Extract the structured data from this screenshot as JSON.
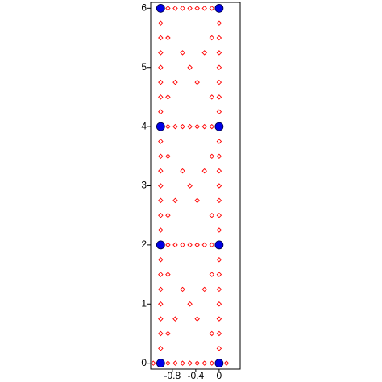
{
  "chart_data": {
    "type": "scatter",
    "xlim": [
      -1.17,
      0.36
    ],
    "ylim": [
      -0.1,
      6.1
    ],
    "xticks": [
      -0.8,
      -0.4,
      0
    ],
    "yticks": [
      0,
      1,
      2,
      3,
      4,
      5,
      6
    ],
    "series": [
      {
        "color": "#ff0000",
        "marker": "diamond",
        "x": [
          -1.125,
          -1,
          -0.875,
          -0.75,
          -0.625,
          -0.5,
          -0.375,
          -0.25,
          -0.125,
          0,
          0.125,
          -1,
          -0.875,
          -0.75,
          -0.625,
          -0.5,
          -0.375,
          -0.25,
          -0.125,
          0,
          -1,
          -0.875,
          -0.75,
          -0.625,
          -0.5,
          -0.375,
          -0.25,
          -0.125,
          0,
          -1,
          -0.875,
          -0.75,
          -0.625,
          -0.5,
          -0.375,
          -0.25,
          -0.125,
          0,
          -1,
          0,
          -1,
          0,
          -1,
          0,
          -1,
          0,
          -1,
          0,
          -1,
          0,
          -1,
          0,
          -0.875,
          -0.125,
          -0.75,
          -0.375,
          -0.5,
          -0.625,
          -0.25,
          -0.875,
          -0.125,
          -1,
          0,
          -1,
          0,
          -1,
          0,
          -1,
          0,
          -1,
          0,
          -1,
          0,
          -1,
          0,
          -0.875,
          -0.125,
          -0.75,
          -0.375,
          -0.5,
          -0.625,
          -0.25,
          -0.875,
          -0.125,
          -1,
          0,
          -1,
          0,
          -1,
          0,
          -1,
          0,
          -1,
          0,
          -1,
          0,
          -1,
          0,
          -0.875,
          -0.125,
          -0.75,
          -0.375,
          -0.5,
          -0.625,
          -0.25,
          -0.875,
          -0.125
        ],
        "values": [
          0,
          0,
          0,
          0,
          0,
          0,
          0,
          0,
          0,
          0,
          0,
          2,
          2,
          2,
          2,
          2,
          2,
          2,
          2,
          2,
          4,
          4,
          4,
          4,
          4,
          4,
          4,
          4,
          4,
          6,
          6,
          6,
          6,
          6,
          6,
          6,
          6,
          6,
          0.25,
          0.25,
          0.5,
          0.5,
          0.75,
          0.75,
          1,
          1,
          1.25,
          1.25,
          1.5,
          1.5,
          1.75,
          1.75,
          0.5,
          0.5,
          0.75,
          0.75,
          1,
          1.25,
          1.25,
          1.5,
          1.5,
          2.25,
          2.25,
          2.5,
          2.5,
          2.75,
          2.75,
          3,
          3,
          3.25,
          3.25,
          3.5,
          3.5,
          3.75,
          3.75,
          2.5,
          2.5,
          2.75,
          2.75,
          3,
          3.25,
          3.25,
          3.5,
          3.5,
          4.25,
          4.25,
          4.5,
          4.5,
          4.75,
          4.75,
          5,
          5,
          5.25,
          5.25,
          5.5,
          5.5,
          5.75,
          5.75,
          4.5,
          4.5,
          4.75,
          4.75,
          5,
          5.25,
          5.25,
          5.5,
          5.5
        ]
      },
      {
        "color": "#0000e6",
        "marker": "circle",
        "x": [
          -1,
          0,
          -1,
          0,
          -1,
          0,
          -1,
          0
        ],
        "values": [
          0,
          0,
          2,
          2,
          4,
          4,
          6,
          6
        ]
      }
    ]
  }
}
